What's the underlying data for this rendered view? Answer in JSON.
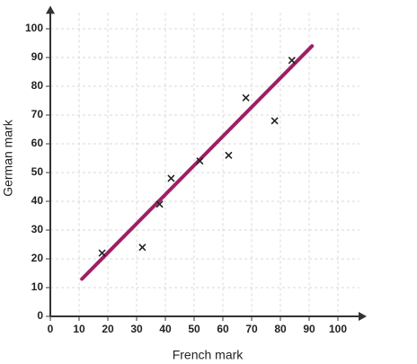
{
  "chart_data": {
    "type": "scatter",
    "x_label": "French mark",
    "y_label": "German mark",
    "x": [
      18,
      32,
      38,
      42,
      52,
      62,
      68,
      78,
      84
    ],
    "values": [
      22,
      24,
      39,
      48,
      54,
      56,
      76,
      68,
      89
    ],
    "marker_color": "#222222",
    "fit_line": {
      "x": [
        11,
        91
      ],
      "values": [
        13,
        94
      ],
      "color": "#9e1f63"
    },
    "xlim": [
      0,
      110
    ],
    "ylim": [
      0,
      108
    ],
    "xticks": [
      0,
      10,
      20,
      30,
      40,
      50,
      60,
      70,
      80,
      90,
      100
    ],
    "yticks": [
      0,
      10,
      20,
      30,
      40,
      50,
      60,
      70,
      80,
      90,
      100
    ],
    "grid": true
  }
}
